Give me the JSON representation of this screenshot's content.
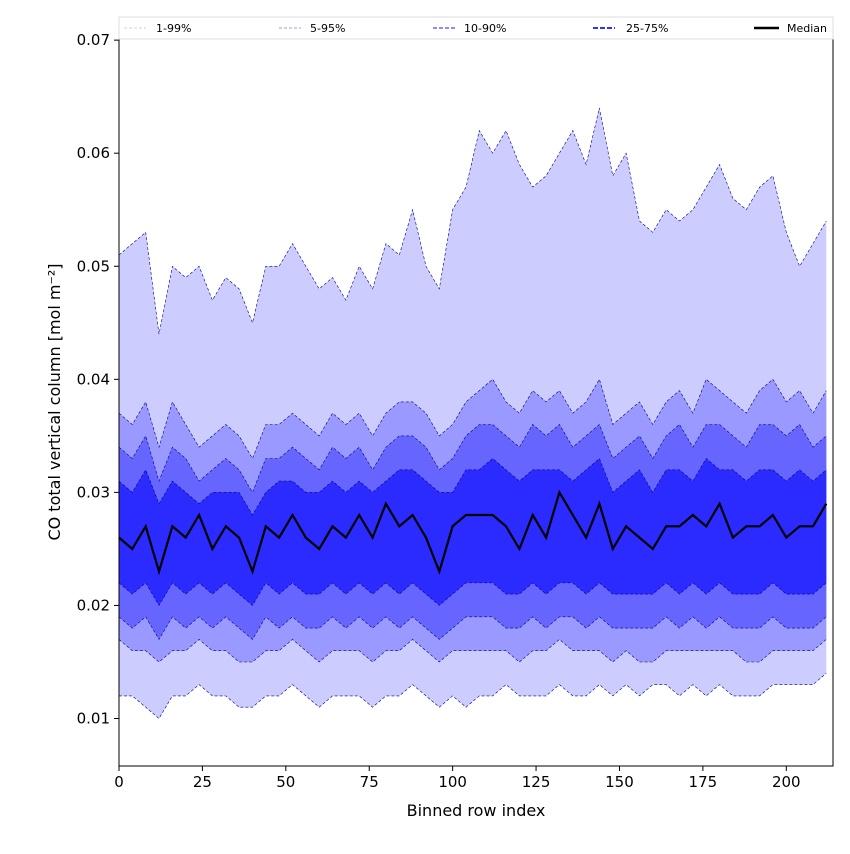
{
  "chart_data": {
    "type": "area",
    "title": "",
    "xlabel": "Binned row index",
    "ylabel": "CO total vertical column [mol m⁻²]",
    "xlim": [
      0,
      214
    ],
    "ylim": [
      0.0058,
      0.0701
    ],
    "xticks": [
      0,
      25,
      50,
      75,
      100,
      125,
      150,
      175,
      200
    ],
    "xtick_labels": [
      "0",
      "25",
      "50",
      "75",
      "100",
      "125",
      "150",
      "175",
      "200"
    ],
    "yticks": [
      0.01,
      0.02,
      0.03,
      0.04,
      0.05,
      0.06,
      0.07
    ],
    "ytick_labels": [
      "0.01",
      "0.02",
      "0.03",
      "0.04",
      "0.05",
      "0.06",
      "0.07"
    ],
    "legend_placement": "top, above plot",
    "legend": [
      "1-99%",
      "5-95%",
      "10-90%",
      "25-75%",
      "Median"
    ],
    "colors": {
      "band_1_99": "#ccccff",
      "band_5_95": "#9999ff",
      "band_10_90": "#6666ff",
      "band_25_75": "#2b2bff",
      "edge": "#00008b",
      "median": "#000000"
    },
    "x": [
      0,
      4,
      8,
      12,
      16,
      20,
      24,
      28,
      32,
      36,
      40,
      44,
      48,
      52,
      56,
      60,
      64,
      68,
      72,
      76,
      80,
      84,
      88,
      92,
      96,
      100,
      104,
      108,
      112,
      116,
      120,
      124,
      128,
      132,
      136,
      140,
      144,
      148,
      152,
      156,
      160,
      164,
      168,
      172,
      176,
      180,
      184,
      188,
      192,
      196,
      200,
      204,
      208,
      212
    ],
    "series": [
      {
        "name": "p1",
        "values": [
          0.012,
          0.012,
          0.011,
          0.01,
          0.012,
          0.012,
          0.013,
          0.012,
          0.012,
          0.011,
          0.011,
          0.012,
          0.012,
          0.013,
          0.012,
          0.011,
          0.012,
          0.012,
          0.012,
          0.011,
          0.012,
          0.012,
          0.013,
          0.012,
          0.011,
          0.012,
          0.011,
          0.012,
          0.012,
          0.013,
          0.012,
          0.012,
          0.012,
          0.013,
          0.012,
          0.012,
          0.013,
          0.012,
          0.013,
          0.012,
          0.013,
          0.013,
          0.012,
          0.013,
          0.012,
          0.013,
          0.012,
          0.012,
          0.012,
          0.013,
          0.013,
          0.013,
          0.013,
          0.014
        ]
      },
      {
        "name": "p5",
        "values": [
          0.017,
          0.016,
          0.016,
          0.015,
          0.016,
          0.016,
          0.017,
          0.016,
          0.016,
          0.015,
          0.015,
          0.016,
          0.016,
          0.017,
          0.016,
          0.015,
          0.016,
          0.016,
          0.016,
          0.015,
          0.016,
          0.016,
          0.017,
          0.016,
          0.015,
          0.016,
          0.016,
          0.016,
          0.016,
          0.016,
          0.015,
          0.016,
          0.016,
          0.017,
          0.016,
          0.016,
          0.016,
          0.015,
          0.016,
          0.015,
          0.015,
          0.016,
          0.016,
          0.016,
          0.016,
          0.016,
          0.016,
          0.015,
          0.015,
          0.016,
          0.016,
          0.016,
          0.016,
          0.017
        ]
      },
      {
        "name": "p10",
        "values": [
          0.019,
          0.018,
          0.019,
          0.017,
          0.019,
          0.018,
          0.019,
          0.018,
          0.019,
          0.018,
          0.017,
          0.019,
          0.018,
          0.019,
          0.018,
          0.018,
          0.019,
          0.018,
          0.019,
          0.018,
          0.019,
          0.018,
          0.019,
          0.018,
          0.017,
          0.018,
          0.019,
          0.019,
          0.019,
          0.018,
          0.018,
          0.019,
          0.018,
          0.019,
          0.019,
          0.018,
          0.019,
          0.018,
          0.018,
          0.018,
          0.018,
          0.019,
          0.018,
          0.019,
          0.018,
          0.019,
          0.018,
          0.018,
          0.018,
          0.019,
          0.018,
          0.018,
          0.018,
          0.019
        ]
      },
      {
        "name": "p25",
        "values": [
          0.022,
          0.021,
          0.022,
          0.02,
          0.022,
          0.021,
          0.022,
          0.021,
          0.022,
          0.021,
          0.02,
          0.022,
          0.021,
          0.022,
          0.021,
          0.021,
          0.022,
          0.021,
          0.022,
          0.021,
          0.022,
          0.021,
          0.022,
          0.021,
          0.02,
          0.021,
          0.022,
          0.022,
          0.022,
          0.021,
          0.021,
          0.022,
          0.021,
          0.022,
          0.022,
          0.021,
          0.022,
          0.021,
          0.021,
          0.021,
          0.021,
          0.022,
          0.021,
          0.022,
          0.021,
          0.022,
          0.021,
          0.021,
          0.021,
          0.022,
          0.021,
          0.021,
          0.021,
          0.022
        ]
      },
      {
        "name": "median",
        "values": [
          0.026,
          0.025,
          0.027,
          0.023,
          0.027,
          0.026,
          0.028,
          0.025,
          0.027,
          0.026,
          0.023,
          0.027,
          0.026,
          0.028,
          0.026,
          0.025,
          0.027,
          0.026,
          0.028,
          0.026,
          0.029,
          0.027,
          0.028,
          0.026,
          0.023,
          0.027,
          0.028,
          0.028,
          0.028,
          0.027,
          0.025,
          0.028,
          0.026,
          0.03,
          0.028,
          0.026,
          0.029,
          0.025,
          0.027,
          0.026,
          0.025,
          0.027,
          0.027,
          0.028,
          0.027,
          0.029,
          0.026,
          0.027,
          0.027,
          0.028,
          0.026,
          0.027,
          0.027,
          0.029
        ]
      },
      {
        "name": "p75",
        "values": [
          0.031,
          0.03,
          0.032,
          0.029,
          0.031,
          0.03,
          0.029,
          0.03,
          0.03,
          0.03,
          0.028,
          0.03,
          0.031,
          0.031,
          0.03,
          0.03,
          0.031,
          0.03,
          0.031,
          0.03,
          0.031,
          0.032,
          0.032,
          0.031,
          0.03,
          0.03,
          0.032,
          0.032,
          0.033,
          0.032,
          0.031,
          0.032,
          0.032,
          0.032,
          0.031,
          0.032,
          0.033,
          0.03,
          0.031,
          0.032,
          0.03,
          0.032,
          0.032,
          0.031,
          0.033,
          0.032,
          0.032,
          0.031,
          0.032,
          0.032,
          0.031,
          0.032,
          0.031,
          0.032
        ]
      },
      {
        "name": "p90",
        "values": [
          0.034,
          0.033,
          0.035,
          0.031,
          0.034,
          0.033,
          0.031,
          0.032,
          0.033,
          0.032,
          0.03,
          0.033,
          0.033,
          0.034,
          0.033,
          0.032,
          0.034,
          0.033,
          0.034,
          0.032,
          0.034,
          0.035,
          0.035,
          0.034,
          0.032,
          0.033,
          0.035,
          0.036,
          0.036,
          0.035,
          0.034,
          0.036,
          0.035,
          0.036,
          0.034,
          0.035,
          0.036,
          0.033,
          0.034,
          0.035,
          0.033,
          0.035,
          0.036,
          0.034,
          0.036,
          0.036,
          0.035,
          0.034,
          0.036,
          0.036,
          0.035,
          0.036,
          0.034,
          0.035
        ]
      },
      {
        "name": "p95",
        "values": [
          0.037,
          0.036,
          0.038,
          0.034,
          0.038,
          0.036,
          0.034,
          0.035,
          0.036,
          0.035,
          0.033,
          0.036,
          0.036,
          0.037,
          0.036,
          0.035,
          0.037,
          0.036,
          0.037,
          0.035,
          0.037,
          0.038,
          0.038,
          0.037,
          0.035,
          0.036,
          0.038,
          0.039,
          0.04,
          0.038,
          0.037,
          0.039,
          0.038,
          0.039,
          0.037,
          0.038,
          0.04,
          0.036,
          0.037,
          0.038,
          0.036,
          0.038,
          0.039,
          0.037,
          0.04,
          0.039,
          0.038,
          0.037,
          0.039,
          0.04,
          0.038,
          0.039,
          0.037,
          0.039
        ]
      },
      {
        "name": "p99",
        "values": [
          0.051,
          0.052,
          0.053,
          0.044,
          0.05,
          0.049,
          0.05,
          0.047,
          0.049,
          0.048,
          0.045,
          0.05,
          0.05,
          0.052,
          0.05,
          0.048,
          0.049,
          0.047,
          0.05,
          0.048,
          0.052,
          0.051,
          0.055,
          0.05,
          0.048,
          0.055,
          0.057,
          0.062,
          0.06,
          0.062,
          0.059,
          0.057,
          0.058,
          0.06,
          0.062,
          0.059,
          0.064,
          0.058,
          0.06,
          0.054,
          0.053,
          0.055,
          0.054,
          0.055,
          0.057,
          0.059,
          0.056,
          0.055,
          0.057,
          0.058,
          0.053,
          0.05,
          0.052,
          0.054
        ]
      }
    ]
  }
}
